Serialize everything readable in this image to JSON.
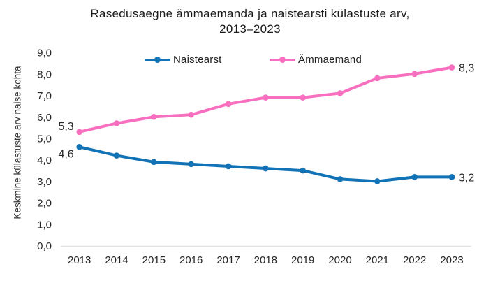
{
  "chart_data": {
    "type": "line",
    "title": "Rasedusaegne ämmaemanda ja naistearsti külastuste arv,\n2013–2023",
    "ylabel": "Keskmine külastuste arv naise kohta",
    "xlabel": "",
    "ylim": [
      0,
      9
    ],
    "grid": false,
    "legend_position": "top-center",
    "categories": [
      "2013",
      "2014",
      "2015",
      "2016",
      "2017",
      "2018",
      "2019",
      "2020",
      "2021",
      "2022",
      "2023"
    ],
    "y_tick_labels": [
      "0,0",
      "1,0",
      "2,0",
      "3,0",
      "4,0",
      "5,0",
      "6,0",
      "7,0",
      "8,0",
      "9,0"
    ],
    "series": [
      {
        "name": "Naistearst",
        "color": "#1272b6",
        "values": [
          4.6,
          4.2,
          3.9,
          3.8,
          3.7,
          3.6,
          3.5,
          3.1,
          3.0,
          3.2,
          3.2
        ]
      },
      {
        "name": "Ämmaemand",
        "color": "#f96fc0",
        "values": [
          5.3,
          5.7,
          6.0,
          6.1,
          6.6,
          6.9,
          6.9,
          7.1,
          7.8,
          8.0,
          8.3
        ]
      }
    ],
    "point_labels": [
      {
        "series": "Ämmaemand",
        "category": "2013",
        "text": "5,3",
        "position": "left"
      },
      {
        "series": "Naistearst",
        "category": "2013",
        "text": "4,6",
        "position": "left-below"
      },
      {
        "series": "Ämmaemand",
        "category": "2023",
        "text": "8,3",
        "position": "right"
      },
      {
        "series": "Naistearst",
        "category": "2023",
        "text": "3,2",
        "position": "right"
      }
    ],
    "axis_color": "#d9d9d9",
    "text_color": "#262626"
  }
}
